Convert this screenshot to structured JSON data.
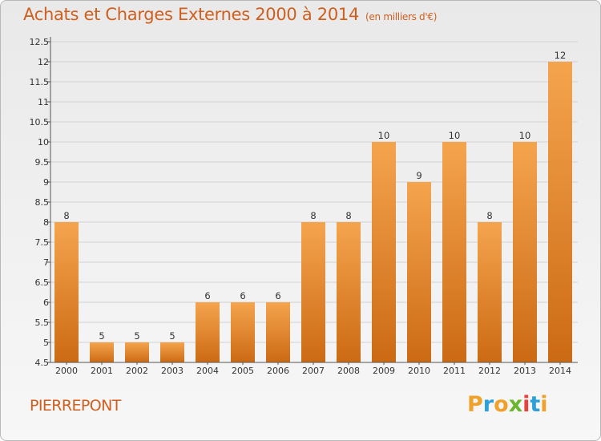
{
  "chart_data": {
    "type": "bar",
    "title": "Achats et Charges Externes 2000 à 2014",
    "unit": "(en milliers d'€)",
    "xlabel": "",
    "ylabel": "",
    "categories": [
      "2000",
      "2001",
      "2002",
      "2003",
      "2004",
      "2005",
      "2006",
      "2007",
      "2008",
      "2009",
      "2010",
      "2011",
      "2012",
      "2013",
      "2014"
    ],
    "values": [
      8,
      5,
      5,
      5,
      6,
      6,
      6,
      8,
      8,
      10,
      9,
      10,
      8,
      10,
      12
    ],
    "ylim": [
      4.5,
      12.5
    ],
    "yticks": [
      "4.5",
      "5",
      "5.5",
      "6",
      "6.5",
      "7",
      "7.5",
      "8",
      "8.5",
      "9",
      "9.5",
      "10",
      "10.5",
      "11",
      "11.5",
      "12",
      "12.5"
    ],
    "grid": true,
    "bar_color_light": "#f5a44e",
    "bar_color_dark": "#cc6a14"
  },
  "footer": {
    "commune": "PIERREPONT",
    "logo_letters": [
      "P",
      "r",
      "o",
      "x",
      "i",
      "t",
      "i"
    ],
    "logo_colors": [
      "#f0a12b",
      "#2d9fd9",
      "#f0a12b",
      "#6ab72f",
      "#e8423c",
      "#2d9fd9",
      "#f0a12b"
    ]
  }
}
